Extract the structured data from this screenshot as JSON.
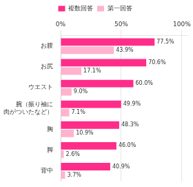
{
  "chart_data": {
    "type": "bar",
    "orientation": "horizontal",
    "categories": [
      "お腹",
      "お尻",
      "ウエスト",
      "腕（振り袖に\n肉がついたなど）",
      "胸",
      "脚",
      "背中"
    ],
    "series": [
      {
        "name": "複数回答",
        "color": "#FF2D8A",
        "values": [
          77.5,
          70.6,
          60.0,
          49.9,
          48.3,
          46.0,
          40.9
        ],
        "value_labels": [
          "77.5%",
          "70.6%",
          "60.0%",
          "49.9%",
          "48.3%",
          "46.0%",
          "40.9%"
        ]
      },
      {
        "name": "第一回答",
        "color": "#FFB3CC",
        "values": [
          43.9,
          17.1,
          9.0,
          7.1,
          10.9,
          2.6,
          3.7
        ],
        "value_labels": [
          "43.9%",
          "17.1%",
          "9.0%",
          "7.1%",
          "10.9%",
          "2.6%",
          "3.7%"
        ]
      }
    ],
    "xlim": [
      0,
      105
    ],
    "xticks": [
      {
        "value": 0,
        "label": "0%"
      },
      {
        "value": 50,
        "label": "50%"
      },
      {
        "value": 100,
        "label": "100%"
      }
    ],
    "grid": true,
    "legend": "top",
    "data_labels": true
  }
}
